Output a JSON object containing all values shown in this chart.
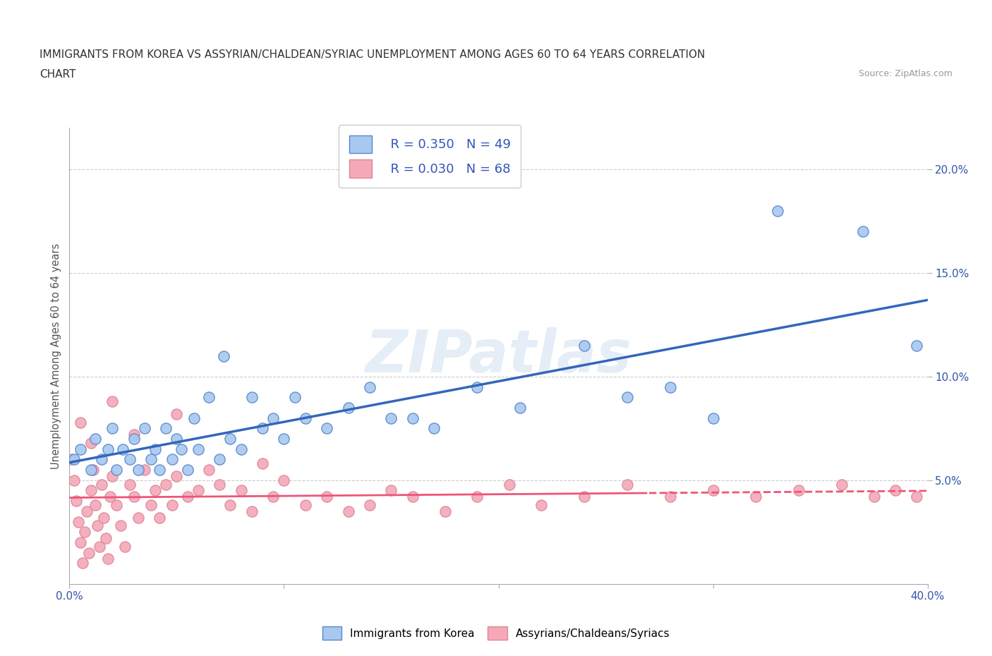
{
  "title_line1": "IMMIGRANTS FROM KOREA VS ASSYRIAN/CHALDEAN/SYRIAC UNEMPLOYMENT AMONG AGES 60 TO 64 YEARS CORRELATION",
  "title_line2": "CHART",
  "source_text": "Source: ZipAtlas.com",
  "ylabel": "Unemployment Among Ages 60 to 64 years",
  "xlim": [
    0.0,
    0.4
  ],
  "ylim": [
    0.0,
    0.22
  ],
  "x_ticks": [
    0.0,
    0.1,
    0.2,
    0.3,
    0.4
  ],
  "x_tick_labels": [
    "0.0%",
    "",
    "",
    "",
    "40.0%"
  ],
  "y_ticks": [
    0.05,
    0.1,
    0.15,
    0.2
  ],
  "y_tick_labels": [
    "5.0%",
    "10.0%",
    "15.0%",
    "20.0%"
  ],
  "korea_color": "#a8c8f0",
  "korea_edge_color": "#5588cc",
  "assyrian_color": "#f4a8b8",
  "assyrian_edge_color": "#dd8899",
  "trend_korea_color": "#3366bb",
  "trend_assyrian_color": "#ee5577",
  "grid_color": "#cccccc",
  "legend_R_korea": "R = 0.350",
  "legend_N_korea": "N = 49",
  "legend_R_assyrian": "R = 0.030",
  "legend_N_assyrian": "N = 68",
  "korea_x": [
    0.002,
    0.005,
    0.01,
    0.012,
    0.015,
    0.018,
    0.02,
    0.022,
    0.025,
    0.028,
    0.03,
    0.032,
    0.035,
    0.038,
    0.04,
    0.042,
    0.045,
    0.048,
    0.05,
    0.052,
    0.055,
    0.058,
    0.06,
    0.065,
    0.07,
    0.072,
    0.075,
    0.08,
    0.085,
    0.09,
    0.095,
    0.1,
    0.105,
    0.11,
    0.12,
    0.13,
    0.14,
    0.15,
    0.16,
    0.17,
    0.19,
    0.21,
    0.24,
    0.26,
    0.28,
    0.3,
    0.33,
    0.37,
    0.395
  ],
  "korea_y": [
    0.06,
    0.065,
    0.055,
    0.07,
    0.06,
    0.065,
    0.075,
    0.055,
    0.065,
    0.06,
    0.07,
    0.055,
    0.075,
    0.06,
    0.065,
    0.055,
    0.075,
    0.06,
    0.07,
    0.065,
    0.055,
    0.08,
    0.065,
    0.09,
    0.06,
    0.11,
    0.07,
    0.065,
    0.09,
    0.075,
    0.08,
    0.07,
    0.09,
    0.08,
    0.075,
    0.085,
    0.095,
    0.08,
    0.08,
    0.075,
    0.095,
    0.085,
    0.115,
    0.09,
    0.095,
    0.08,
    0.18,
    0.17,
    0.115
  ],
  "assyrian_x": [
    0.001,
    0.002,
    0.003,
    0.004,
    0.005,
    0.006,
    0.007,
    0.008,
    0.009,
    0.01,
    0.011,
    0.012,
    0.013,
    0.014,
    0.015,
    0.016,
    0.017,
    0.018,
    0.019,
    0.02,
    0.022,
    0.024,
    0.026,
    0.028,
    0.03,
    0.032,
    0.035,
    0.038,
    0.04,
    0.042,
    0.045,
    0.048,
    0.05,
    0.055,
    0.06,
    0.065,
    0.07,
    0.075,
    0.08,
    0.085,
    0.09,
    0.095,
    0.1,
    0.11,
    0.12,
    0.13,
    0.14,
    0.15,
    0.16,
    0.175,
    0.19,
    0.205,
    0.22,
    0.24,
    0.26,
    0.28,
    0.3,
    0.32,
    0.34,
    0.36,
    0.375,
    0.385,
    0.395,
    0.005,
    0.01,
    0.02,
    0.03,
    0.05
  ],
  "assyrian_y": [
    0.06,
    0.05,
    0.04,
    0.03,
    0.02,
    0.01,
    0.025,
    0.035,
    0.015,
    0.045,
    0.055,
    0.038,
    0.028,
    0.018,
    0.048,
    0.032,
    0.022,
    0.012,
    0.042,
    0.052,
    0.038,
    0.028,
    0.018,
    0.048,
    0.042,
    0.032,
    0.055,
    0.038,
    0.045,
    0.032,
    0.048,
    0.038,
    0.052,
    0.042,
    0.045,
    0.055,
    0.048,
    0.038,
    0.045,
    0.035,
    0.058,
    0.042,
    0.05,
    0.038,
    0.042,
    0.035,
    0.038,
    0.045,
    0.042,
    0.035,
    0.042,
    0.048,
    0.038,
    0.042,
    0.048,
    0.042,
    0.045,
    0.042,
    0.045,
    0.048,
    0.042,
    0.045,
    0.042,
    0.078,
    0.068,
    0.088,
    0.072,
    0.082
  ]
}
